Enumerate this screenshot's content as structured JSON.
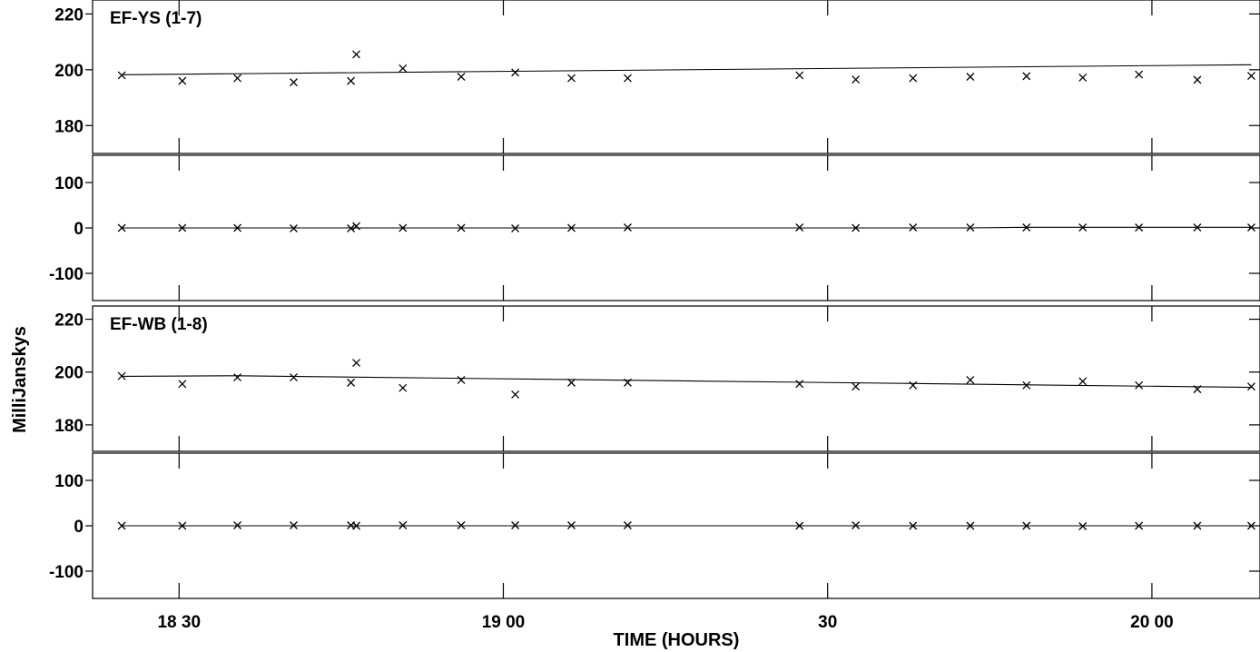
{
  "x_axis_label": "TIME (HOURS)",
  "y_axis_label": "MilliJanskys",
  "chart_data": {
    "type": "scatter",
    "x_unit": "minutes",
    "x_ticks": [
      {
        "x": 1110,
        "label": "18 30"
      },
      {
        "x": 1140,
        "label": "19 00"
      },
      {
        "x": 1170,
        "label": "30"
      },
      {
        "x": 1200,
        "label": "20 00"
      }
    ],
    "xlim": [
      1102,
      1210
    ],
    "xlabel": "TIME (HOURS)",
    "ylabel": "MilliJanskys",
    "grid": false,
    "baselines": [
      {
        "name": "EF-YS (1-7)",
        "amplitude": {
          "ylim": [
            170,
            225
          ],
          "y_ticks": [
            180,
            200,
            220
          ],
          "points": [
            [
              1104.7,
              198
            ],
            [
              1110.3,
              196
            ],
            [
              1115.4,
              197
            ],
            [
              1120.6,
              195.5
            ],
            [
              1125.9,
              196
            ],
            [
              1126.4,
              205.5
            ],
            [
              1130.7,
              200.5
            ],
            [
              1136.1,
              197.5
            ],
            [
              1141.1,
              199
            ],
            [
              1146.3,
              197
            ],
            [
              1151.5,
              197
            ],
            [
              1167.4,
              198
            ],
            [
              1172.6,
              196.5
            ],
            [
              1177.9,
              197
            ],
            [
              1183.2,
              197.5
            ],
            [
              1188.4,
              197.7
            ],
            [
              1193.6,
              197.2
            ],
            [
              1198.8,
              198.3
            ],
            [
              1204.2,
              196.4
            ],
            [
              1209.2,
              197.8
            ]
          ],
          "fit": [
            [
              1104.7,
              198.2
            ],
            [
              1209.2,
              201.8
            ]
          ]
        },
        "phase": {
          "ylim": [
            -160,
            160
          ],
          "y_ticks": [
            -100,
            0,
            100
          ],
          "points": [
            [
              1104.7,
              0
            ],
            [
              1110.3,
              0
            ],
            [
              1115.4,
              0
            ],
            [
              1120.6,
              -1
            ],
            [
              1125.9,
              -1
            ],
            [
              1126.4,
              4
            ],
            [
              1130.7,
              0
            ],
            [
              1136.1,
              0
            ],
            [
              1141.1,
              -1
            ],
            [
              1146.3,
              0
            ],
            [
              1151.5,
              1
            ],
            [
              1167.4,
              1
            ],
            [
              1172.6,
              0
            ],
            [
              1177.9,
              1
            ],
            [
              1183.2,
              1
            ],
            [
              1188.4,
              1
            ],
            [
              1193.6,
              1
            ],
            [
              1198.8,
              1
            ],
            [
              1204.2,
              1
            ],
            [
              1209.2,
              1
            ]
          ],
          "fit": [
            [
              1104.7,
              0
            ],
            [
              1183.0,
              0
            ],
            [
              1188.4,
              1.5
            ],
            [
              1209.2,
              1.5
            ]
          ]
        }
      },
      {
        "name": "EF-WB (1-8)",
        "amplitude": {
          "ylim": [
            170,
            225
          ],
          "y_ticks": [
            180,
            200,
            220
          ],
          "points": [
            [
              1104.7,
              198.5
            ],
            [
              1110.3,
              195.5
            ],
            [
              1115.4,
              198
            ],
            [
              1120.6,
              198
            ],
            [
              1125.9,
              196
            ],
            [
              1126.4,
              203.5
            ],
            [
              1130.7,
              194
            ],
            [
              1136.1,
              197
            ],
            [
              1141.1,
              191.5
            ],
            [
              1146.3,
              196
            ],
            [
              1151.5,
              196
            ],
            [
              1167.4,
              195.5
            ],
            [
              1172.6,
              194.5
            ],
            [
              1177.9,
              195
            ],
            [
              1183.2,
              197
            ],
            [
              1188.4,
              195
            ],
            [
              1193.6,
              196.5
            ],
            [
              1198.8,
              195
            ],
            [
              1204.2,
              193.5
            ],
            [
              1209.2,
              194.5
            ]
          ],
          "fit": [
            [
              1104.7,
              198.4
            ],
            [
              1115.4,
              198.6
            ],
            [
              1209.2,
              194.2
            ]
          ]
        },
        "phase": {
          "ylim": [
            -160,
            160
          ],
          "y_ticks": [
            -100,
            0,
            100
          ],
          "points": [
            [
              1104.7,
              0
            ],
            [
              1110.3,
              0
            ],
            [
              1115.4,
              1
            ],
            [
              1120.6,
              1
            ],
            [
              1125.9,
              1
            ],
            [
              1126.4,
              0
            ],
            [
              1130.7,
              1
            ],
            [
              1136.1,
              1
            ],
            [
              1141.1,
              1
            ],
            [
              1146.3,
              1
            ],
            [
              1151.5,
              1
            ],
            [
              1167.4,
              0
            ],
            [
              1172.6,
              1
            ],
            [
              1177.9,
              0
            ],
            [
              1183.2,
              0
            ],
            [
              1188.4,
              0
            ],
            [
              1193.6,
              -1
            ],
            [
              1198.8,
              0
            ],
            [
              1204.2,
              0
            ],
            [
              1209.2,
              0
            ]
          ],
          "fit": [
            [
              1104.7,
              0
            ],
            [
              1209.2,
              0
            ]
          ]
        }
      }
    ]
  }
}
